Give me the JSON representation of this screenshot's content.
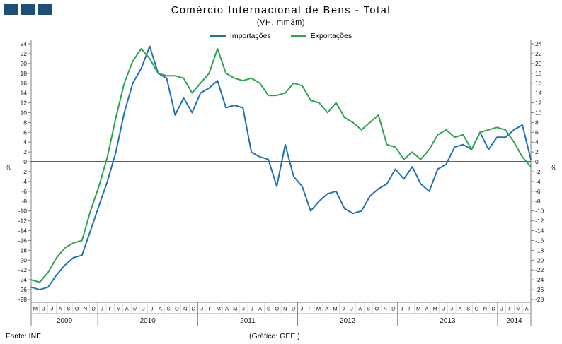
{
  "header": {
    "title": "Comércio Internacional de Bens - Total",
    "subtitle": "(VH, mm3m)"
  },
  "legend": [
    {
      "label": "Importações",
      "color": "#2171B5"
    },
    {
      "label": "Exportações",
      "color": "#2BA550"
    }
  ],
  "axis": {
    "y_min": -28,
    "y_max": 24,
    "y_step": 2,
    "y_unit": "%"
  },
  "footer": {
    "source": "Fonte: INE",
    "credit": "(Gráfico: GEE )"
  },
  "logo_color": "#1F4E79",
  "chart_data": {
    "type": "line",
    "title": "Comércio Internacional de Bens - Total",
    "subtitle": "(VH, mm3m)",
    "ylabel": "%",
    "ylim": [
      -28,
      24
    ],
    "ytick_step": 2,
    "grid": "off",
    "zero_line": true,
    "legend_position": "top",
    "x_months": [
      "M",
      "J",
      "J",
      "A",
      "S",
      "O",
      "N",
      "D",
      "J",
      "F",
      "M",
      "A",
      "M",
      "J",
      "J",
      "A",
      "S",
      "O",
      "N",
      "D",
      "J",
      "F",
      "M",
      "A",
      "M",
      "J",
      "J",
      "A",
      "S",
      "O",
      "N",
      "D",
      "J",
      "F",
      "M",
      "A",
      "M",
      "J",
      "J",
      "A",
      "S",
      "O",
      "N",
      "D",
      "J",
      "F",
      "M",
      "A",
      "M",
      "J",
      "J",
      "A",
      "S",
      "O",
      "N",
      "D",
      "J",
      "F",
      "M",
      "A"
    ],
    "years": [
      {
        "label": "2009",
        "months": 8
      },
      {
        "label": "2010",
        "months": 12
      },
      {
        "label": "2011",
        "months": 12
      },
      {
        "label": "2012",
        "months": 12
      },
      {
        "label": "2013",
        "months": 12
      },
      {
        "label": "2014",
        "months": 4
      }
    ],
    "series": [
      {
        "name": "Importações",
        "color": "#2171B5",
        "values": [
          -25.5,
          -26,
          -25.5,
          -23,
          -21,
          -19.5,
          -19,
          -14,
          -9,
          -4,
          2,
          10,
          16,
          19,
          23.5,
          18,
          17,
          9.5,
          13,
          10,
          14,
          15,
          16.5,
          11,
          11.5,
          11,
          2,
          1,
          0.5,
          -5,
          3.5,
          -3,
          -5,
          -10,
          -8,
          -6.5,
          -6,
          -9.5,
          -10.5,
          -10,
          -7,
          -5.5,
          -4.5,
          -1.5,
          -3.5,
          -1,
          -4.5,
          -6,
          -1.5,
          -0.5,
          3,
          3.5,
          2.5,
          6,
          2.5,
          5,
          5,
          6.5,
          7.5,
          0.5
        ]
      },
      {
        "name": "Exportações",
        "color": "#2BA550",
        "values": [
          -24,
          -24.5,
          -22.5,
          -19.5,
          -17.5,
          -16.5,
          -16,
          -10,
          -5,
          1,
          9,
          16,
          20.5,
          23,
          21,
          18,
          17.5,
          17.5,
          17,
          14,
          16,
          18,
          23,
          18,
          17,
          16.5,
          17,
          16,
          13.5,
          13.5,
          14,
          16,
          15.5,
          12.5,
          12,
          10,
          12,
          9,
          8,
          6.5,
          8,
          9.5,
          3.5,
          3,
          0.5,
          2,
          0.5,
          2.5,
          5.5,
          6.5,
          5,
          5.5,
          2.5,
          6,
          6.5,
          7,
          6.5,
          4,
          1,
          -1
        ]
      }
    ]
  }
}
